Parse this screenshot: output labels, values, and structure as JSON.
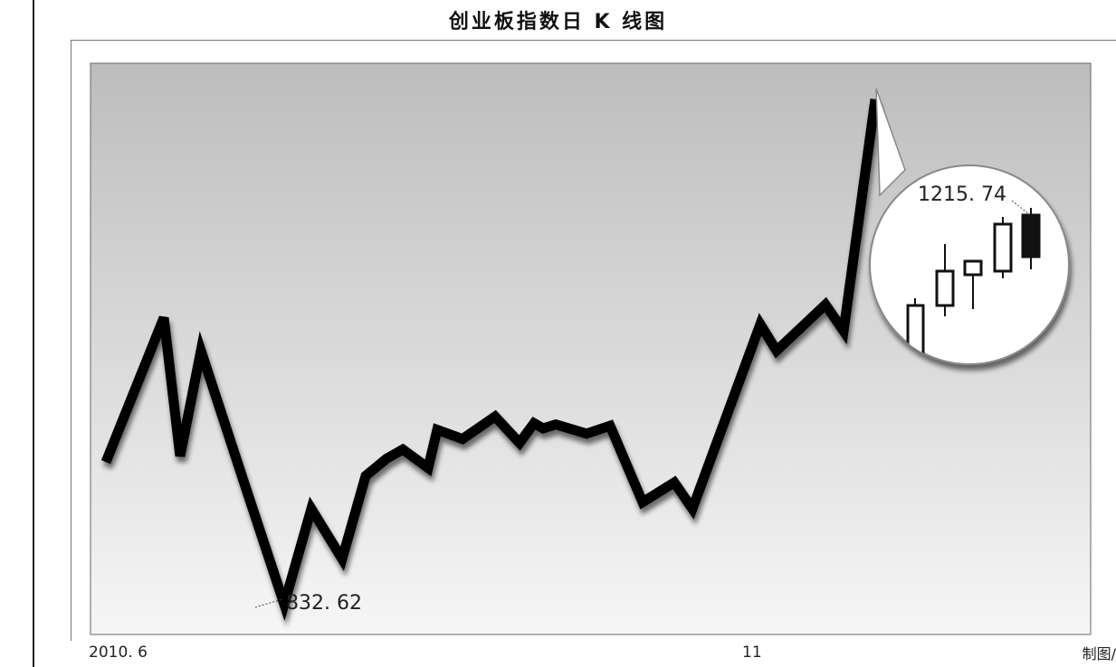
{
  "chart_data": {
    "type": "line",
    "title": "创业板指数日 K 线图",
    "x_tick_labels": [
      "2010. 6",
      "11"
    ],
    "y_range": [
      832.62,
      1215.74
    ],
    "values": [
      940.52,
      1050.0,
      945.0,
      1025.0,
      920.0,
      832.62,
      905.0,
      867.0,
      930.0,
      943.0,
      950.0,
      936.0,
      965.0,
      958.0,
      975.0,
      955.0,
      970.0,
      966.0,
      969.0,
      962.0,
      968.0,
      910.0,
      925.0,
      905.0,
      1045.0,
      1025.0,
      1060.0,
      1040.0,
      1215.74
    ],
    "annotations": {
      "min_label": "832. 62",
      "max_label": "1215. 74"
    },
    "grid": false,
    "legend": "none"
  },
  "credit": "制图/"
}
